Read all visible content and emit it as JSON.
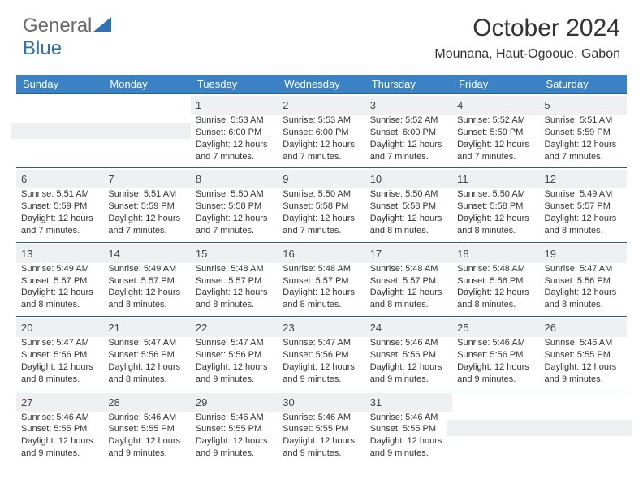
{
  "logo": {
    "text_general": "General",
    "text_blue": "Blue"
  },
  "title": "October 2024",
  "location": "Mounana, Haut-Ogooue, Gabon",
  "header_bg": "#3a82c4",
  "border_color": "#2f5d8a",
  "numrow_bg": "#eef0f2",
  "dow": [
    "Sunday",
    "Monday",
    "Tuesday",
    "Wednesday",
    "Thursday",
    "Friday",
    "Saturday"
  ],
  "weeks": [
    [
      null,
      null,
      {
        "n": "1",
        "sr": "5:53 AM",
        "ss": "6:00 PM",
        "dl": "12 hours and 7 minutes."
      },
      {
        "n": "2",
        "sr": "5:53 AM",
        "ss": "6:00 PM",
        "dl": "12 hours and 7 minutes."
      },
      {
        "n": "3",
        "sr": "5:52 AM",
        "ss": "6:00 PM",
        "dl": "12 hours and 7 minutes."
      },
      {
        "n": "4",
        "sr": "5:52 AM",
        "ss": "5:59 PM",
        "dl": "12 hours and 7 minutes."
      },
      {
        "n": "5",
        "sr": "5:51 AM",
        "ss": "5:59 PM",
        "dl": "12 hours and 7 minutes."
      }
    ],
    [
      {
        "n": "6",
        "sr": "5:51 AM",
        "ss": "5:59 PM",
        "dl": "12 hours and 7 minutes."
      },
      {
        "n": "7",
        "sr": "5:51 AM",
        "ss": "5:59 PM",
        "dl": "12 hours and 7 minutes."
      },
      {
        "n": "8",
        "sr": "5:50 AM",
        "ss": "5:58 PM",
        "dl": "12 hours and 7 minutes."
      },
      {
        "n": "9",
        "sr": "5:50 AM",
        "ss": "5:58 PM",
        "dl": "12 hours and 7 minutes."
      },
      {
        "n": "10",
        "sr": "5:50 AM",
        "ss": "5:58 PM",
        "dl": "12 hours and 8 minutes."
      },
      {
        "n": "11",
        "sr": "5:50 AM",
        "ss": "5:58 PM",
        "dl": "12 hours and 8 minutes."
      },
      {
        "n": "12",
        "sr": "5:49 AM",
        "ss": "5:57 PM",
        "dl": "12 hours and 8 minutes."
      }
    ],
    [
      {
        "n": "13",
        "sr": "5:49 AM",
        "ss": "5:57 PM",
        "dl": "12 hours and 8 minutes."
      },
      {
        "n": "14",
        "sr": "5:49 AM",
        "ss": "5:57 PM",
        "dl": "12 hours and 8 minutes."
      },
      {
        "n": "15",
        "sr": "5:48 AM",
        "ss": "5:57 PM",
        "dl": "12 hours and 8 minutes."
      },
      {
        "n": "16",
        "sr": "5:48 AM",
        "ss": "5:57 PM",
        "dl": "12 hours and 8 minutes."
      },
      {
        "n": "17",
        "sr": "5:48 AM",
        "ss": "5:57 PM",
        "dl": "12 hours and 8 minutes."
      },
      {
        "n": "18",
        "sr": "5:48 AM",
        "ss": "5:56 PM",
        "dl": "12 hours and 8 minutes."
      },
      {
        "n": "19",
        "sr": "5:47 AM",
        "ss": "5:56 PM",
        "dl": "12 hours and 8 minutes."
      }
    ],
    [
      {
        "n": "20",
        "sr": "5:47 AM",
        "ss": "5:56 PM",
        "dl": "12 hours and 8 minutes."
      },
      {
        "n": "21",
        "sr": "5:47 AM",
        "ss": "5:56 PM",
        "dl": "12 hours and 8 minutes."
      },
      {
        "n": "22",
        "sr": "5:47 AM",
        "ss": "5:56 PM",
        "dl": "12 hours and 9 minutes."
      },
      {
        "n": "23",
        "sr": "5:47 AM",
        "ss": "5:56 PM",
        "dl": "12 hours and 9 minutes."
      },
      {
        "n": "24",
        "sr": "5:46 AM",
        "ss": "5:56 PM",
        "dl": "12 hours and 9 minutes."
      },
      {
        "n": "25",
        "sr": "5:46 AM",
        "ss": "5:56 PM",
        "dl": "12 hours and 9 minutes."
      },
      {
        "n": "26",
        "sr": "5:46 AM",
        "ss": "5:55 PM",
        "dl": "12 hours and 9 minutes."
      }
    ],
    [
      {
        "n": "27",
        "sr": "5:46 AM",
        "ss": "5:55 PM",
        "dl": "12 hours and 9 minutes."
      },
      {
        "n": "28",
        "sr": "5:46 AM",
        "ss": "5:55 PM",
        "dl": "12 hours and 9 minutes."
      },
      {
        "n": "29",
        "sr": "5:46 AM",
        "ss": "5:55 PM",
        "dl": "12 hours and 9 minutes."
      },
      {
        "n": "30",
        "sr": "5:46 AM",
        "ss": "5:55 PM",
        "dl": "12 hours and 9 minutes."
      },
      {
        "n": "31",
        "sr": "5:46 AM",
        "ss": "5:55 PM",
        "dl": "12 hours and 9 minutes."
      },
      null,
      null
    ]
  ],
  "labels": {
    "sunrise": "Sunrise:",
    "sunset": "Sunset:",
    "daylight": "Daylight:"
  }
}
